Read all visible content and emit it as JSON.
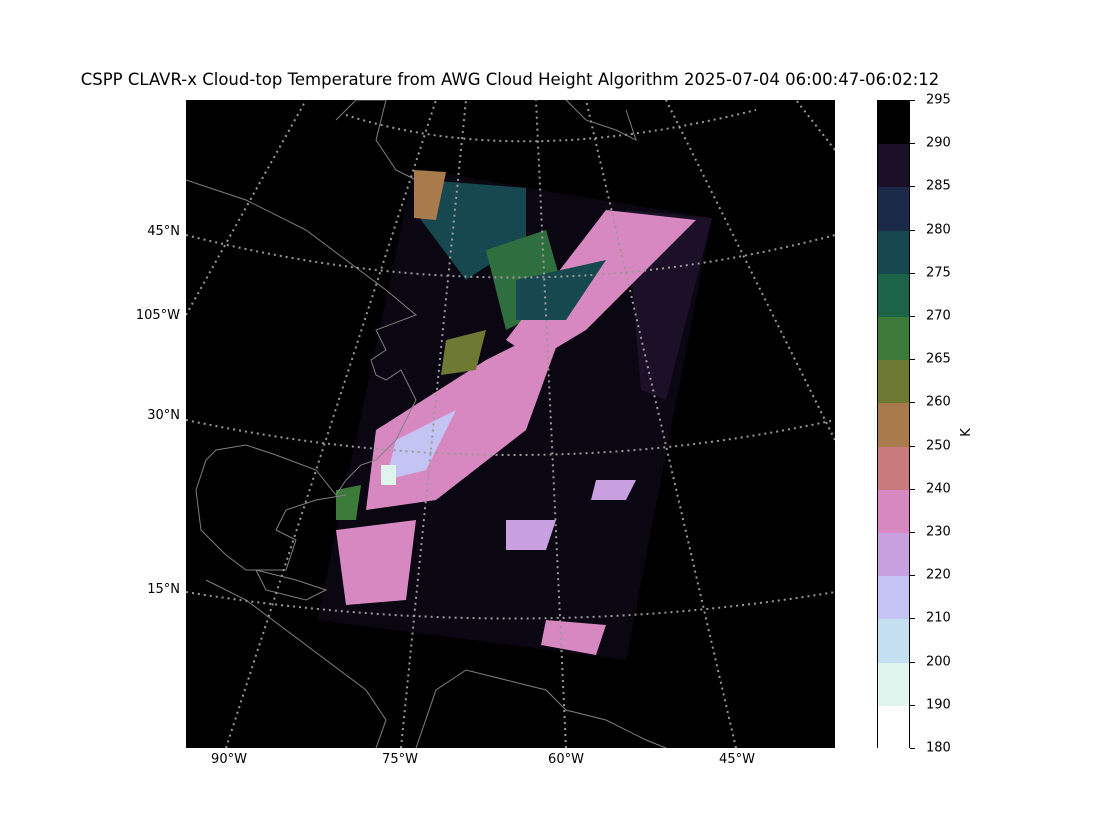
{
  "title": "CSPP CLAVR-x Cloud-top Temperature from AWG Cloud Height Algorithm 2025-07-04 06:00:47-06:02:12",
  "map": {
    "background": "#000000",
    "coastline_color": "#808080",
    "gridline_color": "#9a9a9a",
    "lat_labels": [
      "45°N",
      "105°W",
      "30°N",
      "15°N"
    ],
    "lon_labels": [
      "90°W",
      "75°W",
      "60°W",
      "45°W"
    ]
  },
  "colorbar": {
    "unit": "K",
    "ticks": [
      "295",
      "290",
      "285",
      "280",
      "275",
      "270",
      "265",
      "260",
      "250",
      "240",
      "230",
      "220",
      "210",
      "200",
      "190",
      "180"
    ],
    "colors": [
      "#000000",
      "#1b1028",
      "#1c2a4a",
      "#17484f",
      "#1b6448",
      "#3b7a38",
      "#6e7a34",
      "#a87a4c",
      "#c97a7c",
      "#d888c0",
      "#c8a0e0",
      "#c4c4f4",
      "#c4e0f0",
      "#e0f4ee",
      "#ffffff"
    ]
  }
}
